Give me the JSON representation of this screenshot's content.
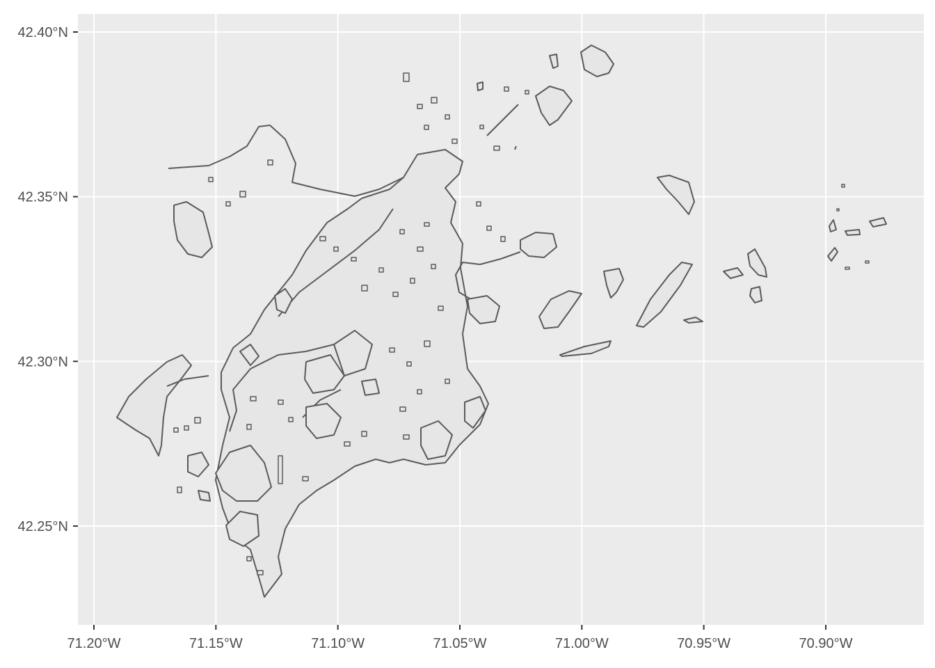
{
  "map": {
    "panel_background": "#ebebeb",
    "grid_color": "#ffffff",
    "feature_fill": "#e6e6e6",
    "feature_stroke": "#5a5a5a",
    "x_ticks": [
      {
        "value": -71.2,
        "label": "71.20°W"
      },
      {
        "value": -71.15,
        "label": "71.15°W"
      },
      {
        "value": -71.1,
        "label": "71.10°W"
      },
      {
        "value": -71.05,
        "label": "71.05°W"
      },
      {
        "value": -71.0,
        "label": "71.00°W"
      },
      {
        "value": -70.95,
        "label": "70.95°W"
      },
      {
        "value": -70.9,
        "label": "70.90°W"
      }
    ],
    "y_ticks": [
      {
        "value": 42.4,
        "label": "42.40°N"
      },
      {
        "value": 42.35,
        "label": "42.35°N"
      },
      {
        "value": 42.3,
        "label": "42.30°N"
      },
      {
        "value": 42.25,
        "label": "42.25°N"
      }
    ]
  }
}
